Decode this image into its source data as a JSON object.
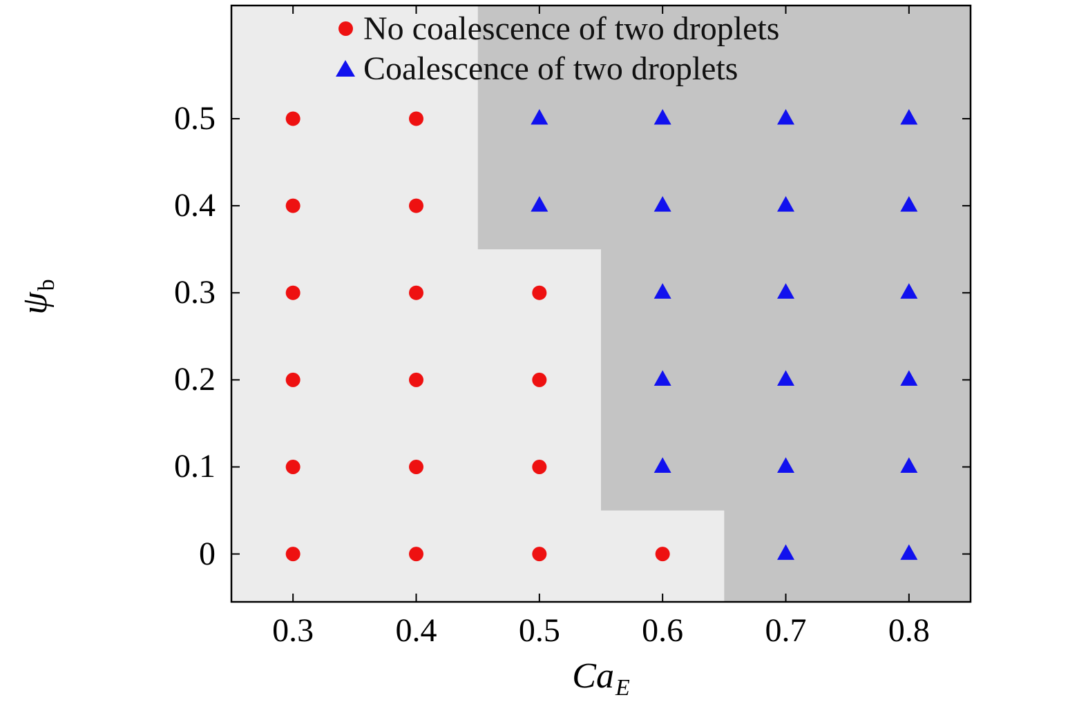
{
  "figure": {
    "background": "#ffffff",
    "frame_color": "#000000"
  },
  "legend": {
    "items": [
      {
        "marker": "circle",
        "label": "No coalescence of two droplets"
      },
      {
        "marker": "triangle",
        "label": "Coalescence of two droplets"
      }
    ]
  },
  "chart_data": {
    "type": "scatter",
    "title": "",
    "xlabel": "Ca_E",
    "xlabel_main": "Ca",
    "xlabel_sub": "E",
    "ylabel": "ψ_b",
    "ylabel_main": "ψ",
    "ylabel_sub": "b",
    "xlim": [
      0.25,
      0.85
    ],
    "ylim": [
      -0.055,
      0.63
    ],
    "x_ticks": [
      0.3,
      0.4,
      0.5,
      0.6,
      0.7,
      0.8
    ],
    "x_tick_labels": [
      "0.3",
      "0.4",
      "0.5",
      "0.6",
      "0.7",
      "0.8"
    ],
    "y_ticks": [
      0,
      0.1,
      0.2,
      0.3,
      0.4,
      0.5
    ],
    "y_tick_labels": [
      "0",
      "0.1",
      "0.2",
      "0.3",
      "0.4",
      "0.5"
    ],
    "grid": false,
    "legend_position": "top-inside",
    "regions": [
      {
        "name": "no-coalescence-region",
        "color": "#ececec",
        "polygon": [
          [
            0.25,
            0.63
          ],
          [
            0.45,
            0.63
          ],
          [
            0.45,
            0.35
          ],
          [
            0.55,
            0.35
          ],
          [
            0.55,
            0.05
          ],
          [
            0.65,
            0.05
          ],
          [
            0.65,
            -0.055
          ],
          [
            0.25,
            -0.055
          ]
        ]
      },
      {
        "name": "coalescence-region",
        "color": "#c4c4c4",
        "polygon": [
          [
            0.45,
            0.63
          ],
          [
            0.85,
            0.63
          ],
          [
            0.85,
            -0.055
          ],
          [
            0.65,
            -0.055
          ],
          [
            0.65,
            0.05
          ],
          [
            0.55,
            0.05
          ],
          [
            0.55,
            0.35
          ],
          [
            0.45,
            0.35
          ]
        ]
      }
    ],
    "series": [
      {
        "name": "No coalescence of two droplets",
        "marker": "circle",
        "color": "#ee1111",
        "points": [
          [
            0.3,
            0.5
          ],
          [
            0.4,
            0.5
          ],
          [
            0.3,
            0.4
          ],
          [
            0.4,
            0.4
          ],
          [
            0.3,
            0.3
          ],
          [
            0.4,
            0.3
          ],
          [
            0.5,
            0.3
          ],
          [
            0.3,
            0.2
          ],
          [
            0.4,
            0.2
          ],
          [
            0.5,
            0.2
          ],
          [
            0.3,
            0.1
          ],
          [
            0.4,
            0.1
          ],
          [
            0.5,
            0.1
          ],
          [
            0.3,
            0.0
          ],
          [
            0.4,
            0.0
          ],
          [
            0.5,
            0.0
          ],
          [
            0.6,
            0.0
          ]
        ]
      },
      {
        "name": "Coalescence of two droplets",
        "marker": "triangle",
        "color": "#1111ee",
        "points": [
          [
            0.5,
            0.5
          ],
          [
            0.6,
            0.5
          ],
          [
            0.7,
            0.5
          ],
          [
            0.8,
            0.5
          ],
          [
            0.5,
            0.4
          ],
          [
            0.6,
            0.4
          ],
          [
            0.7,
            0.4
          ],
          [
            0.8,
            0.4
          ],
          [
            0.6,
            0.3
          ],
          [
            0.7,
            0.3
          ],
          [
            0.8,
            0.3
          ],
          [
            0.6,
            0.2
          ],
          [
            0.7,
            0.2
          ],
          [
            0.8,
            0.2
          ],
          [
            0.6,
            0.1
          ],
          [
            0.7,
            0.1
          ],
          [
            0.8,
            0.1
          ],
          [
            0.7,
            0.0
          ],
          [
            0.8,
            0.0
          ]
        ]
      }
    ]
  }
}
